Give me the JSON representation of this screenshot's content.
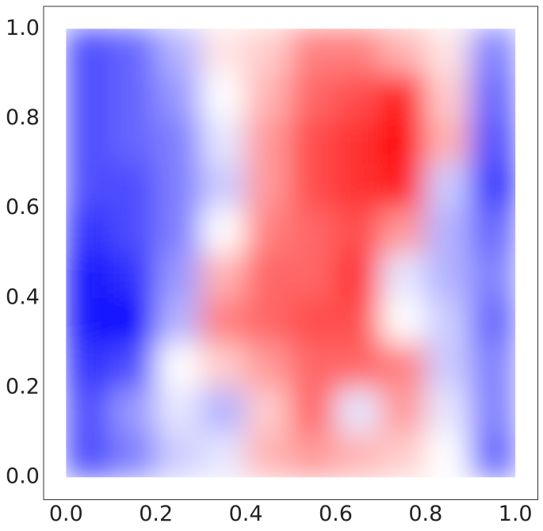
{
  "chart_data": {
    "type": "heatmap",
    "x": [
      0.05,
      0.15,
      0.25,
      0.35,
      0.45,
      0.55,
      0.65,
      0.75,
      0.85,
      0.95
    ],
    "y": [
      0.05,
      0.15,
      0.25,
      0.35,
      0.45,
      0.55,
      0.65,
      0.75,
      0.85,
      0.95
    ],
    "z": [
      [
        -0.7,
        -0.5,
        -0.2,
        -0.1,
        0.3,
        0.4,
        0.3,
        0.2,
        0.0,
        -0.6
      ],
      [
        -0.7,
        -0.4,
        -0.1,
        -0.3,
        0.2,
        0.6,
        -0.1,
        0.4,
        -0.1,
        -0.5
      ],
      [
        -0.8,
        -0.7,
        0.0,
        0.2,
        0.4,
        0.6,
        0.6,
        0.5,
        -0.2,
        -0.5
      ],
      [
        -0.9,
        -1.0,
        -0.3,
        0.5,
        0.6,
        0.7,
        0.7,
        0.0,
        -0.2,
        -0.6
      ],
      [
        -0.9,
        -0.8,
        -0.4,
        0.3,
        0.6,
        0.6,
        0.8,
        -0.1,
        -0.3,
        -0.5
      ],
      [
        -0.8,
        -0.7,
        -0.5,
        0.0,
        0.5,
        0.6,
        0.7,
        0.4,
        -0.3,
        -0.6
      ],
      [
        -0.7,
        -0.7,
        -0.5,
        -0.2,
        0.4,
        0.7,
        0.8,
        0.9,
        -0.2,
        -0.8
      ],
      [
        -0.7,
        -0.6,
        -0.5,
        -0.1,
        0.4,
        0.7,
        0.8,
        1.0,
        0.3,
        -0.7
      ],
      [
        -0.7,
        -0.6,
        -0.4,
        0.0,
        0.3,
        0.6,
        0.7,
        0.9,
        0.2,
        -0.6
      ],
      [
        -0.7,
        -0.6,
        -0.3,
        0.1,
        0.2,
        0.5,
        0.5,
        0.3,
        0.1,
        -0.5
      ]
    ],
    "colormap": "bwr",
    "clim": [
      -1,
      1
    ],
    "xlim": [
      -0.05,
      1.05
    ],
    "ylim": [
      -0.05,
      1.05
    ],
    "xticks": [
      {
        "value": 0,
        "label": "0.0"
      },
      {
        "value": 0.2,
        "label": "0.2"
      },
      {
        "value": 0.4,
        "label": "0.4"
      },
      {
        "value": 0.6,
        "label": "0.6"
      },
      {
        "value": 0.8,
        "label": "0.8"
      },
      {
        "value": 1,
        "label": "1.0"
      }
    ],
    "yticks": [
      {
        "value": 0,
        "label": "0.0"
      },
      {
        "value": 0.2,
        "label": "0.2"
      },
      {
        "value": 0.4,
        "label": "0.4"
      },
      {
        "value": 0.6,
        "label": "0.6"
      },
      {
        "value": 0.8,
        "label": "0.8"
      },
      {
        "value": 1,
        "label": "1.0"
      }
    ],
    "grid": false
  }
}
